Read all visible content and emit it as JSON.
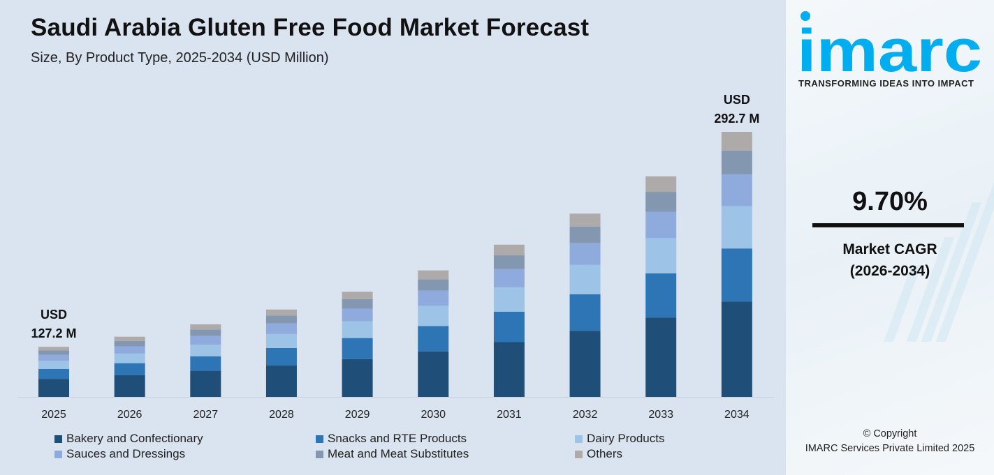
{
  "header": {
    "title": "Saudi Arabia Gluten Free Food Market Forecast",
    "subtitle": "Size, By Product Type, 2025-2034 (USD Million)"
  },
  "chart_data": {
    "type": "bar",
    "stacked": true,
    "title": "Saudi Arabia Gluten Free Food Market Forecast",
    "subtitle": "Size, By Product Type, 2025-2034 (USD Million)",
    "xlabel": "",
    "ylabel": "",
    "grid": false,
    "legend_position": "bottom",
    "categories": [
      "2025",
      "2026",
      "2027",
      "2028",
      "2029",
      "2030",
      "2031",
      "2032",
      "2033",
      "2034"
    ],
    "series": [
      {
        "name": "Bakery and Confectionary",
        "color": "#1f4e79",
        "values": [
          45.8,
          50.2,
          55.1,
          60.5,
          66.3,
          72.8,
          79.8,
          87.6,
          96.1,
          105.4
        ]
      },
      {
        "name": "Snacks and RTE Products",
        "color": "#2e75b6",
        "values": [
          25.4,
          27.9,
          30.6,
          33.6,
          36.9,
          40.4,
          44.4,
          48.7,
          53.4,
          58.5
        ]
      },
      {
        "name": "Dairy Products",
        "color": "#9dc3e6",
        "values": [
          20.4,
          22.3,
          24.5,
          26.9,
          29.5,
          32.4,
          35.5,
          38.9,
          42.7,
          46.8
        ]
      },
      {
        "name": "Sauces and Dressings",
        "color": "#8faadc",
        "values": [
          15.3,
          16.7,
          18.4,
          20.2,
          22.1,
          24.3,
          26.6,
          29.2,
          32.0,
          35.1
        ]
      },
      {
        "name": "Meat and Meat Substitutes",
        "color": "#8497b0",
        "values": [
          11.4,
          12.6,
          13.8,
          15.1,
          16.6,
          18.2,
          20.0,
          21.9,
          24.0,
          26.3
        ]
      },
      {
        "name": "Others",
        "color": "#aeaaaa",
        "values": [
          8.9,
          9.8,
          10.7,
          11.7,
          12.9,
          14.1,
          15.5,
          17.1,
          18.8,
          20.6
        ]
      }
    ],
    "annotations": [
      {
        "category": "2025",
        "line1": "USD",
        "line2": "127.2 M"
      },
      {
        "category": "2034",
        "line1": "USD",
        "line2": "292.7 M"
      }
    ]
  },
  "side": {
    "logo_text": "imarc",
    "tagline": "TRANSFORMING IDEAS INTO IMPACT",
    "cagr_value": "9.70%",
    "cagr_label": "Market CAGR",
    "cagr_period": "(2026-2034)",
    "copyright_line1": "© Copyright",
    "copyright_line2": "IMARC Services Private Limited 2025",
    "brand_color": "#00aeef"
  }
}
